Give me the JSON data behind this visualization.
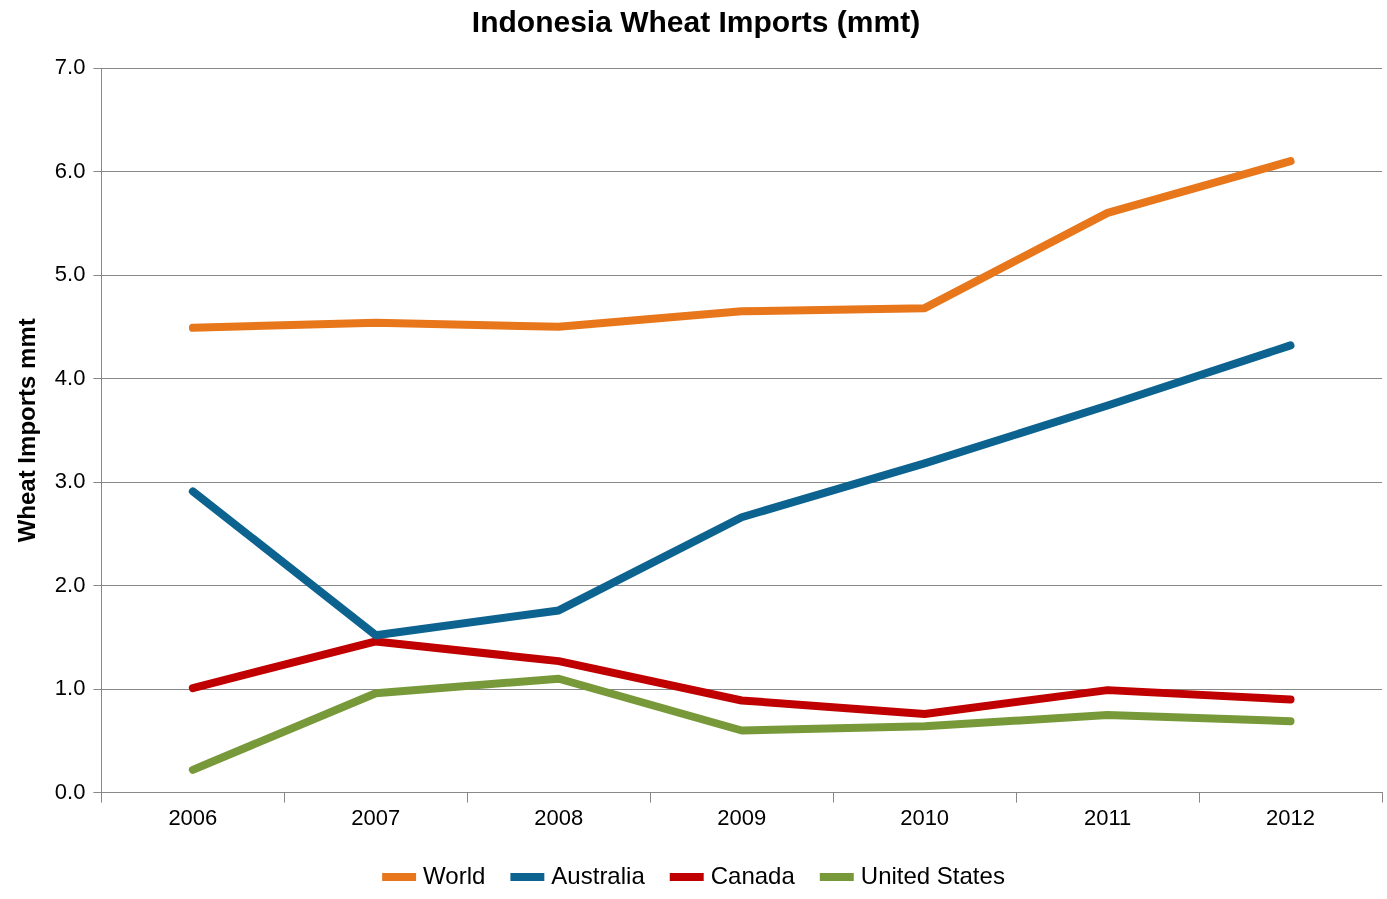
{
  "chart_data": {
    "type": "line",
    "title": "Indonesia Wheat Imports (mmt)",
    "ylabel": "Wheat Imports mmt",
    "categories": [
      "2006",
      "2007",
      "2008",
      "2009",
      "2010",
      "2011",
      "2012"
    ],
    "series": [
      {
        "name": "World",
        "color": "#e8761a",
        "values": [
          4.49,
          4.54,
          4.5,
          4.65,
          4.68,
          5.6,
          6.1
        ]
      },
      {
        "name": "Australia",
        "color": "#0c6390",
        "values": [
          2.91,
          1.52,
          1.76,
          2.66,
          3.18,
          3.74,
          4.32
        ]
      },
      {
        "name": "Canada",
        "color": "#c00000",
        "values": [
          1.01,
          1.46,
          1.27,
          0.89,
          0.76,
          0.99,
          0.9
        ]
      },
      {
        "name": "United States",
        "color": "#77993a",
        "values": [
          0.22,
          0.96,
          1.1,
          0.6,
          0.64,
          0.75,
          0.69
        ]
      }
    ],
    "ylim": [
      0,
      7
    ],
    "yticks": [
      {
        "value": 0,
        "label": "0.0"
      },
      {
        "value": 1,
        "label": "1.0"
      },
      {
        "value": 2,
        "label": "2.0"
      },
      {
        "value": 3,
        "label": "3.0"
      },
      {
        "value": 4,
        "label": "4.0"
      },
      {
        "value": 5,
        "label": "5.0"
      },
      {
        "value": 6,
        "label": "6.0"
      },
      {
        "value": 7,
        "label": "7.0"
      }
    ],
    "grid": "y",
    "legend": "bottom",
    "marker": "none",
    "line_style": "solid"
  }
}
